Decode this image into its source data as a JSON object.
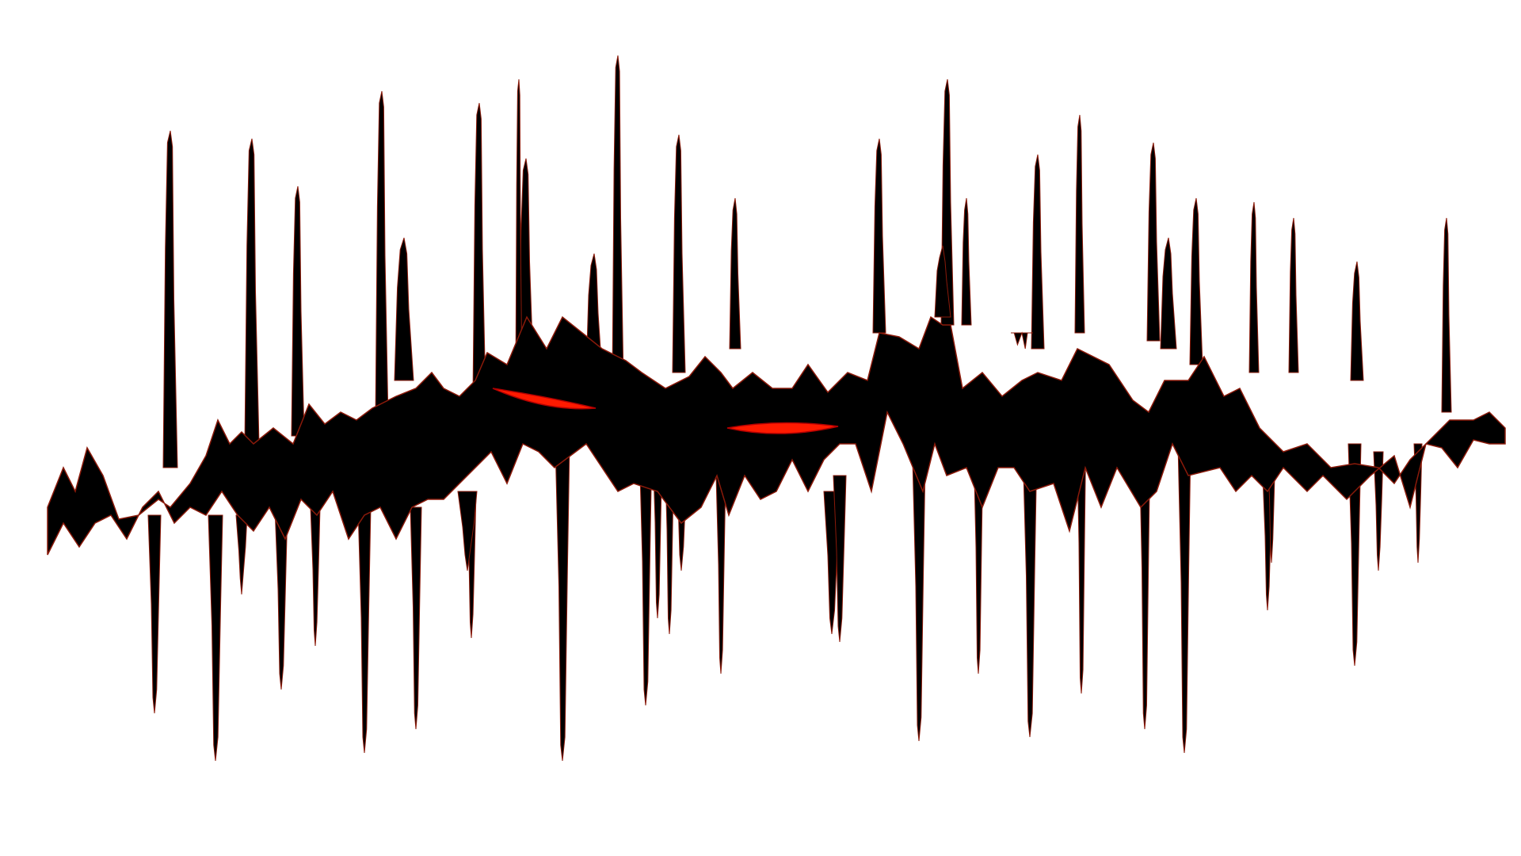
{
  "artwork": {
    "kind": "abstract-waveform-creature",
    "background_color": "#ffffff",
    "fill_color": "#000000",
    "outline_color": "#8a1a0a",
    "eye_color": "#ff1a00",
    "eye_count": 2,
    "spike_count_upward": 26,
    "spike_count_downward": 28
  }
}
